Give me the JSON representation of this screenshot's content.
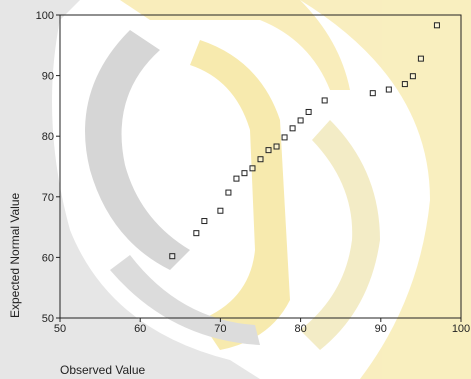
{
  "chart_data": {
    "type": "scatter",
    "title": "",
    "xlabel": "Observed Value",
    "ylabel": "Expected Normal Value",
    "xlim": [
      50,
      100
    ],
    "ylim": [
      50,
      100
    ],
    "x_ticks": [
      "50",
      "60",
      "70",
      "80",
      "90",
      "100"
    ],
    "y_ticks": [
      "50",
      "60",
      "70",
      "80",
      "90",
      "100"
    ],
    "grid": false,
    "legend": "none",
    "marker": "open-square",
    "colors": {
      "marker": "#222222",
      "axis": "#222222",
      "watermark_gray": "#c8c8c8",
      "watermark_yellow": "#f7e9a6"
    },
    "x": [
      64,
      67,
      68,
      70,
      71,
      72,
      73,
      74,
      75,
      76,
      77,
      78,
      79,
      80,
      81,
      83,
      89,
      91,
      93,
      94,
      95,
      97
    ],
    "y": [
      60.2,
      64,
      66,
      67.7,
      70.7,
      73,
      73.9,
      74.7,
      76.2,
      77.7,
      78.3,
      79.8,
      81.3,
      82.6,
      84,
      85.9,
      87.1,
      87.7,
      88.6,
      89.9,
      92.8,
      98.3
    ]
  }
}
